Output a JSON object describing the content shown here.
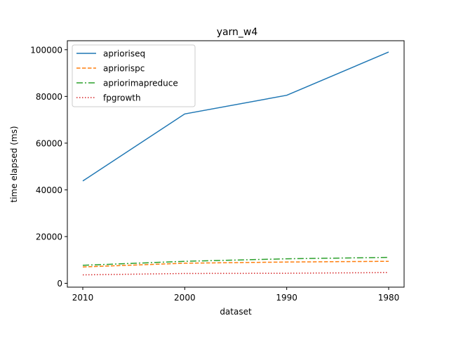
{
  "chart_data": {
    "type": "line",
    "title": "yarn_w4",
    "xlabel": "dataset",
    "ylabel": "time elapsed (ms)",
    "categories": [
      "2010",
      "2000",
      "1990",
      "1980"
    ],
    "ylim": [
      0,
      104000
    ],
    "yticks": [
      0,
      20000,
      40000,
      60000,
      80000,
      100000
    ],
    "legend": "top-left",
    "grid": false,
    "series": [
      {
        "name": "aprioriseq",
        "values": [
          43800,
          72500,
          80500,
          99000
        ],
        "color": "#1f77b4",
        "dash": "solid"
      },
      {
        "name": "apriorispc",
        "values": [
          7000,
          8600,
          9100,
          9400
        ],
        "color": "#ff7f0e",
        "dash": "dashed"
      },
      {
        "name": "apriorimapreduce",
        "values": [
          7700,
          9400,
          10500,
          11100
        ],
        "color": "#2ca02c",
        "dash": "dashdot"
      },
      {
        "name": "fpgrowth",
        "values": [
          3600,
          4200,
          4300,
          4600
        ],
        "color": "#d62728",
        "dash": "dotted"
      }
    ]
  }
}
